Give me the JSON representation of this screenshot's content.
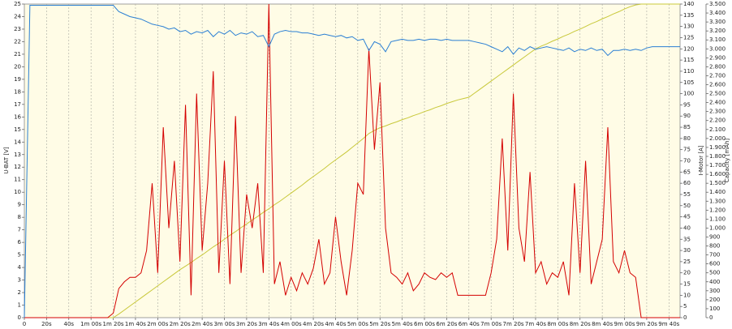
{
  "chart_data": {
    "type": "line",
    "x": [
      0,
      5,
      10,
      15,
      20,
      25,
      30,
      35,
      40,
      45,
      50,
      55,
      60,
      65,
      70,
      75,
      80,
      85,
      90,
      95,
      100,
      105,
      110,
      115,
      120,
      125,
      130,
      135,
      140,
      145,
      150,
      155,
      160,
      165,
      170,
      175,
      180,
      185,
      190,
      195,
      200,
      205,
      210,
      215,
      220,
      225,
      230,
      235,
      240,
      245,
      250,
      255,
      260,
      265,
      270,
      275,
      280,
      285,
      290,
      295,
      300,
      305,
      310,
      315,
      320,
      325,
      330,
      335,
      340,
      345,
      350,
      355,
      360,
      365,
      370,
      375,
      380,
      385,
      390,
      395,
      400,
      405,
      410,
      415,
      420,
      425,
      430,
      435,
      440,
      445,
      450,
      455,
      460,
      465,
      470,
      475,
      480,
      485,
      490,
      495,
      500,
      505,
      510,
      515,
      520,
      525,
      530,
      535,
      540,
      545,
      550,
      555,
      560,
      565,
      570,
      575,
      580,
      585,
      590
    ],
    "series": [
      {
        "name": "U-BAT [V]",
        "color": "#2a7fd4",
        "axis": "y",
        "values": [
          0,
          24.9,
          24.9,
          24.9,
          24.9,
          24.9,
          24.9,
          24.9,
          24.9,
          24.9,
          24.9,
          24.9,
          24.9,
          24.9,
          24.9,
          24.9,
          24.9,
          24.4,
          24.2,
          24.0,
          23.9,
          23.8,
          23.6,
          23.4,
          23.3,
          23.2,
          23.0,
          23.1,
          22.8,
          22.9,
          22.6,
          22.8,
          22.7,
          22.9,
          22.4,
          22.8,
          22.6,
          22.9,
          22.5,
          22.7,
          22.6,
          22.8,
          22.4,
          22.5,
          21.6,
          22.6,
          22.8,
          22.9,
          22.8,
          22.8,
          22.7,
          22.7,
          22.6,
          22.5,
          22.6,
          22.5,
          22.4,
          22.5,
          22.3,
          22.4,
          22.1,
          22.2,
          21.3,
          22.0,
          21.8,
          21.2,
          22.0,
          22.1,
          22.2,
          22.1,
          22.1,
          22.2,
          22.1,
          22.2,
          22.2,
          22.1,
          22.2,
          22.1,
          22.1,
          22.1,
          22.1,
          22.0,
          21.9,
          21.8,
          21.6,
          21.4,
          21.2,
          21.6,
          21.0,
          21.5,
          21.3,
          21.6,
          21.4,
          21.5,
          21.6,
          21.5,
          21.4,
          21.3,
          21.5,
          21.2,
          21.4,
          21.3,
          21.5,
          21.3,
          21.4,
          20.9,
          21.3,
          21.3,
          21.4,
          21.3,
          21.4,
          21.3,
          21.5,
          21.6,
          21.6,
          21.6,
          21.6,
          21.6,
          21.6
        ]
      },
      {
        "name": "I-Motor [A]",
        "color": "#d40000",
        "axis": "y2",
        "values": [
          0,
          0,
          0,
          0,
          0,
          0,
          0,
          0,
          0,
          0,
          0,
          0,
          0,
          0,
          0,
          0,
          2,
          13,
          16,
          18,
          18,
          20,
          30,
          60,
          20,
          85,
          40,
          70,
          25,
          95,
          10,
          100,
          30,
          60,
          110,
          20,
          70,
          15,
          90,
          20,
          55,
          40,
          60,
          20,
          140,
          15,
          25,
          10,
          18,
          12,
          20,
          15,
          22,
          35,
          15,
          20,
          45,
          25,
          10,
          30,
          60,
          55,
          120,
          75,
          105,
          40,
          20,
          18,
          15,
          20,
          12,
          15,
          20,
          18,
          17,
          20,
          18,
          20,
          10,
          10,
          10,
          10,
          10,
          10,
          20,
          35,
          80,
          30,
          100,
          40,
          25,
          65,
          20,
          25,
          15,
          20,
          18,
          25,
          10,
          60,
          20,
          70,
          15,
          25,
          35,
          85,
          25,
          20,
          30,
          20,
          18,
          0,
          0,
          0,
          0,
          0,
          0,
          0,
          0
        ]
      },
      {
        "name": "Capacity [mAh]",
        "color": "#c8c83a",
        "axis": "y3",
        "values": [
          0,
          0,
          0,
          0,
          0,
          0,
          0,
          0,
          0,
          0,
          0,
          0,
          0,
          0,
          0,
          0,
          0,
          40,
          85,
          130,
          175,
          220,
          265,
          310,
          355,
          400,
          445,
          490,
          535,
          575,
          615,
          660,
          700,
          745,
          790,
          830,
          875,
          920,
          960,
          1005,
          1045,
          1090,
          1130,
          1175,
          1215,
          1260,
          1300,
          1345,
          1390,
          1435,
          1480,
          1530,
          1575,
          1620,
          1665,
          1715,
          1760,
          1805,
          1850,
          1900,
          1950,
          2000,
          2055,
          2090,
          2120,
          2140,
          2165,
          2185,
          2210,
          2230,
          2255,
          2275,
          2300,
          2320,
          2345,
          2365,
          2390,
          2410,
          2430,
          2445,
          2460,
          2505,
          2550,
          2595,
          2640,
          2685,
          2730,
          2775,
          2820,
          2865,
          2910,
          2955,
          3000,
          3030,
          3055,
          3085,
          3110,
          3140,
          3165,
          3195,
          3220,
          3250,
          3280,
          3305,
          3335,
          3360,
          3390,
          3415,
          3445,
          3470,
          3490,
          3500,
          3500,
          3500,
          3500,
          3500,
          3500,
          3500,
          3500
        ]
      }
    ],
    "xlim": [
      0,
      590
    ],
    "xticks": [
      0,
      {
        "value": 20,
        "label": "20s"
      },
      {
        "value": 40,
        "label": "40s"
      },
      {
        "value": 60,
        "label": "1m 00s"
      },
      {
        "value": 80,
        "label": "1m 20s"
      },
      {
        "value": 100,
        "label": "1m 40s"
      },
      {
        "value": 120,
        "label": "2m 00s"
      },
      {
        "value": 140,
        "label": "2m 20s"
      },
      {
        "value": 160,
        "label": "2m 40s"
      },
      {
        "value": 180,
        "label": "3m 00s"
      },
      {
        "value": 200,
        "label": "3m 20s"
      },
      {
        "value": 220,
        "label": "3m 40s"
      },
      {
        "value": 240,
        "label": "4m 00s"
      },
      {
        "value": 260,
        "label": "4m 20s"
      },
      {
        "value": 280,
        "label": "4m 40s"
      },
      {
        "value": 300,
        "label": "5m 00s"
      },
      {
        "value": 320,
        "label": "5m 20s"
      },
      {
        "value": 340,
        "label": "5m 40s"
      },
      {
        "value": 360,
        "label": "6m 00s"
      },
      {
        "value": 380,
        "label": "6m 20s"
      },
      {
        "value": 400,
        "label": "6m 40s"
      },
      {
        "value": 420,
        "label": "7m 00s"
      },
      {
        "value": 440,
        "label": "7m 20s"
      },
      {
        "value": 460,
        "label": "7m 40s"
      },
      {
        "value": 480,
        "label": "8m 00s"
      },
      {
        "value": 500,
        "label": "8m 20s"
      },
      {
        "value": 520,
        "label": "8m 40s"
      },
      {
        "value": 540,
        "label": "9m 00s"
      },
      {
        "value": 560,
        "label": "9m 20s"
      },
      {
        "value": 580,
        "label": "9m 40s"
      }
    ],
    "ylim": [
      0,
      25
    ],
    "yticks": [
      0,
      1,
      2,
      3,
      4,
      5,
      6,
      7,
      8,
      9,
      10,
      11,
      12,
      13,
      14,
      15,
      16,
      17,
      18,
      19,
      20,
      21,
      22,
      23,
      24,
      25
    ],
    "y2lim": [
      0,
      140
    ],
    "y2ticks": [
      0,
      5,
      10,
      15,
      20,
      25,
      30,
      35,
      40,
      45,
      50,
      55,
      60,
      65,
      70,
      75,
      80,
      85,
      90,
      95,
      100,
      105,
      110,
      115,
      120,
      125,
      130,
      135,
      140
    ],
    "y3lim": [
      0,
      3500
    ],
    "y3ticks": [
      0,
      100,
      200,
      300,
      400,
      500,
      600,
      700,
      800,
      900,
      {
        "value": 1000,
        "label": "1.000"
      },
      {
        "value": 1100,
        "label": "1.100"
      },
      {
        "value": 1200,
        "label": "1.200"
      },
      {
        "value": 1300,
        "label": "1.300"
      },
      {
        "value": 1400,
        "label": "1.400"
      },
      {
        "value": 1500,
        "label": "1.500"
      },
      {
        "value": 1600,
        "label": "1.600"
      },
      {
        "value": 1700,
        "label": "1.700"
      },
      {
        "value": 1800,
        "label": "1.800"
      },
      {
        "value": 1900,
        "label": "1.900"
      },
      {
        "value": 2000,
        "label": "2.000"
      },
      {
        "value": 2100,
        "label": "2.100"
      },
      {
        "value": 2200,
        "label": "2.200"
      },
      {
        "value": 2300,
        "label": "2.300"
      },
      {
        "value": 2400,
        "label": "2.400"
      },
      {
        "value": 2500,
        "label": "2.500"
      },
      {
        "value": 2600,
        "label": "2.600"
      },
      {
        "value": 2700,
        "label": "2.700"
      },
      {
        "value": 2800,
        "label": "2.800"
      },
      {
        "value": 2900,
        "label": "2.900"
      },
      {
        "value": 3000,
        "label": "3.000"
      },
      {
        "value": 3100,
        "label": "3.100"
      },
      {
        "value": 3200,
        "label": "3.200"
      },
      {
        "value": 3300,
        "label": "3.300"
      },
      {
        "value": 3400,
        "label": "3.400"
      },
      {
        "value": 3500,
        "label": "3.500"
      }
    ],
    "grid": true
  }
}
